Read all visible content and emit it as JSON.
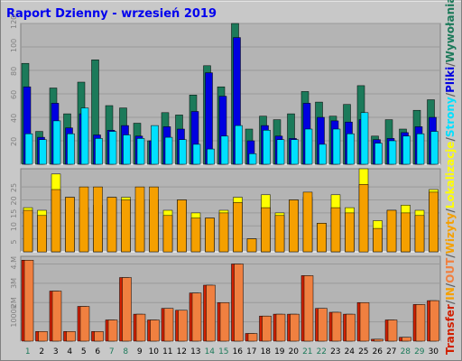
{
  "title": "Raport Dzienny -  wrzesień 2019",
  "colors": {
    "background": "#c8c8c8",
    "panel": "#b4b4b4",
    "title": "#0000ee",
    "wywolania": "#1c7a5a",
    "pliki": "#0000e0",
    "strony": "#00e0ff",
    "wizyty": "#f5a000",
    "lokalizacje": "#ffff00",
    "transfer": "#d02000",
    "transfer_in": "#f08040"
  },
  "legend_right": [
    {
      "text": "Wywołania",
      "color": "#1c7a5a"
    },
    {
      "text": "/",
      "color": "#606060"
    },
    {
      "text": "Pliki",
      "color": "#0000e0"
    },
    {
      "text": "/",
      "color": "#606060"
    },
    {
      "text": "Strony",
      "color": "#00e0ff"
    },
    {
      "text": "/",
      "color": "#606060"
    },
    {
      "text": "Lokalizacje",
      "color": "#ffff00"
    },
    {
      "text": "/",
      "color": "#606060"
    },
    {
      "text": "Wizyty",
      "color": "#f5a000"
    },
    {
      "text": "/",
      "color": "#606060"
    },
    {
      "text": "OUT",
      "color": "#f08040"
    },
    {
      "text": "/",
      "color": "#606060"
    },
    {
      "text": "IN",
      "color": "#f5a000"
    },
    {
      "text": "/",
      "color": "#606060"
    },
    {
      "text": "Transfer",
      "color": "#d02000"
    }
  ],
  "chart_data": [
    {
      "type": "bar",
      "categories": [
        "1",
        "2",
        "3",
        "4",
        "5",
        "6",
        "7",
        "8",
        "9",
        "10",
        "11",
        "12",
        "13",
        "14",
        "15",
        "16",
        "17",
        "18",
        "19",
        "20",
        "21",
        "22",
        "23",
        "24",
        "25",
        "26",
        "27",
        "28",
        "29",
        "30"
      ],
      "weekend_days": [
        "1",
        "7",
        "8",
        "14",
        "15",
        "21",
        "22",
        "28",
        "29"
      ],
      "ylim": [
        0,
        120
      ],
      "yticks": [
        "20",
        "40",
        "60",
        "80",
        "100",
        "120"
      ],
      "grid": true,
      "series": [
        {
          "name": "Wywołania",
          "values": [
            86,
            28,
            65,
            43,
            70,
            89,
            50,
            48,
            35,
            20,
            44,
            42,
            59,
            84,
            66,
            120,
            30,
            41,
            38,
            43,
            62,
            53,
            41,
            51,
            67,
            24,
            38,
            30,
            46,
            55
          ]
        },
        {
          "name": "Pliki",
          "values": [
            66,
            23,
            52,
            31,
            43,
            25,
            29,
            33,
            24,
            20,
            32,
            30,
            45,
            78,
            58,
            108,
            20,
            33,
            24,
            22,
            52,
            40,
            37,
            36,
            38,
            21,
            22,
            27,
            32,
            40
          ]
        },
        {
          "name": "Strony",
          "values": [
            26,
            21,
            37,
            26,
            48,
            22,
            28,
            25,
            22,
            33,
            23,
            21,
            17,
            13,
            24,
            33,
            9,
            29,
            21,
            21,
            30,
            17,
            30,
            26,
            44,
            18,
            20,
            24,
            26,
            28
          ]
        }
      ]
    },
    {
      "type": "bar",
      "ylim": [
        0,
        32
      ],
      "yticks": [
        "5",
        "10",
        "15",
        "20",
        "25"
      ],
      "grid": true,
      "series": [
        {
          "name": "Lokalizacje",
          "values": [
            17,
            16,
            30,
            21,
            17,
            18,
            21,
            21,
            20,
            20,
            16,
            20,
            15,
            13,
            16,
            21,
            5,
            22,
            15,
            20,
            21,
            11,
            22,
            17,
            32,
            12,
            16,
            18,
            16,
            24
          ]
        },
        {
          "name": "Wizyty",
          "values": [
            16,
            14,
            24,
            21,
            25,
            25,
            21,
            20,
            25,
            25,
            14,
            20,
            13,
            13,
            15,
            19,
            5,
            17,
            14,
            20,
            23,
            11,
            17,
            15,
            26,
            9,
            16,
            15,
            14,
            23
          ]
        }
      ]
    },
    {
      "type": "bar",
      "ylim": [
        0,
        4.4
      ],
      "yticks": [
        "1000k",
        "2M",
        "3M",
        "4.M"
      ],
      "grid": true,
      "series": [
        {
          "name": "OUT",
          "values": [
            4.2,
            0.5,
            2.6,
            0.5,
            1.8,
            0.5,
            1.1,
            3.3,
            1.4,
            1.1,
            1.7,
            1.6,
            2.5,
            2.9,
            2.0,
            4.0,
            0.4,
            1.3,
            1.4,
            1.4,
            3.4,
            1.7,
            1.5,
            1.4,
            2.0,
            0.1,
            1.1,
            0.2,
            1.9,
            2.1
          ]
        },
        {
          "name": "IN",
          "values": [
            4.2,
            0.5,
            2.6,
            0.5,
            1.8,
            0.5,
            1.1,
            3.3,
            1.4,
            1.1,
            1.7,
            1.6,
            2.5,
            2.9,
            2.0,
            4.0,
            0.4,
            1.3,
            1.4,
            1.4,
            3.4,
            1.7,
            1.5,
            1.4,
            2.0,
            0.1,
            1.1,
            0.2,
            1.9,
            2.1
          ]
        }
      ]
    }
  ]
}
